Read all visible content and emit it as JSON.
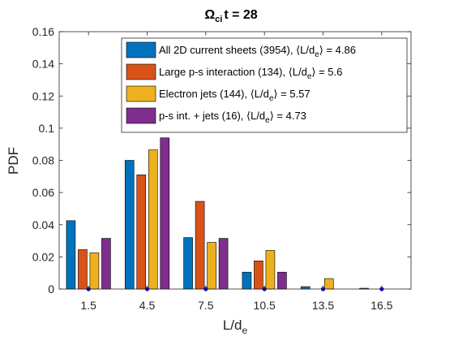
{
  "chart_data": {
    "type": "bar",
    "title": "Ω",
    "title_sub": "ci",
    "title_rest": "t = 28",
    "xlabel": "L/d",
    "xlabel_sub": "e",
    "ylabel": "PDF",
    "categories": [
      "1.5",
      "4.5",
      "7.5",
      "10.5",
      "13.5",
      "16.5"
    ],
    "x": [
      1.5,
      4.5,
      7.5,
      10.5,
      13.5,
      16.5
    ],
    "ylim": [
      0,
      0.16
    ],
    "xlim": [
      0,
      18
    ],
    "yticks": [
      0,
      0.02,
      0.04,
      0.06,
      0.08,
      0.1,
      0.12,
      0.14,
      0.16
    ],
    "ytick_labels": [
      "0",
      "0.02",
      "0.04",
      "0.06",
      "0.08",
      "0.1",
      "0.12",
      "0.14",
      "0.16"
    ],
    "legend_position": "top-right",
    "grid": false,
    "series": [
      {
        "name": "All 2D current sheets (3954), ⟨L/d",
        "name_sub": "e",
        "name_rest": "⟩ = 4.86",
        "color": "#0072bd",
        "values": [
          0.0425,
          0.08,
          0.032,
          0.0105,
          0.0015,
          0.0005
        ]
      },
      {
        "name": "Large p-s interaction (134), ⟨L/d",
        "name_sub": "e",
        "name_rest": "⟩ = 5.6",
        "color": "#d95319",
        "values": [
          0.0245,
          0.071,
          0.0545,
          0.0175,
          0,
          0
        ]
      },
      {
        "name": "Electron jets (144), ⟨L/d",
        "name_sub": "e",
        "name_rest": "⟩ = 5.57",
        "color": "#edb120",
        "values": [
          0.0225,
          0.0865,
          0.029,
          0.024,
          0.0065,
          0
        ]
      },
      {
        "name": "p-s int. + jets (16), ⟨L/d",
        "name_sub": "e",
        "name_rest": "⟩ = 4.73",
        "color": "#7e2f8e",
        "values": [
          0.0315,
          0.094,
          0.0315,
          0.0105,
          0,
          0
        ]
      }
    ],
    "markers": {
      "color": "#0000cc",
      "y": 0
    }
  }
}
